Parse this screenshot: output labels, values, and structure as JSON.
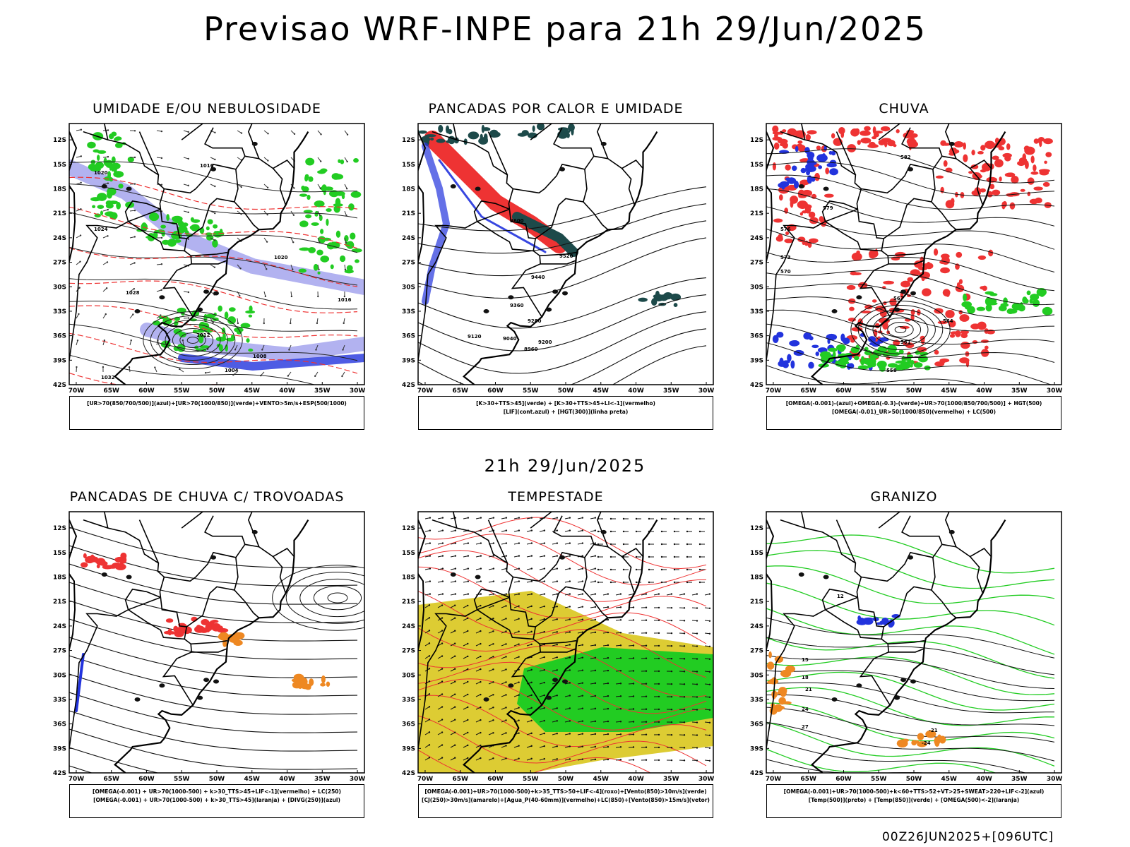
{
  "main_title": "Previsao WRF-INPE  para 21h 29/Jun/2025",
  "mid_date": "21h 29/Jun/2025",
  "footer_code": "00Z26JUN2025+[096UTC]",
  "axes": {
    "lat_labels": [
      "12S",
      "15S",
      "18S",
      "21S",
      "24S",
      "27S",
      "30S",
      "33S",
      "36S",
      "39S",
      "42S"
    ],
    "lon_labels": [
      "70W",
      "65W",
      "60W",
      "55W",
      "50W",
      "45W",
      "40W",
      "35W",
      "30W"
    ]
  },
  "panels": [
    {
      "title": "UMIDADE E/OU NEBULOSIDADE",
      "legend": [
        "[UR>70(850/700/500)](azul)+[UR>70(1000/850)](verde)+VENTO>5m/s+ESP(500/1000)"
      ],
      "contour_labels": [
        "1020",
        "1016",
        "1024",
        "1028",
        "1012",
        "1008",
        "1004",
        "1032"
      ]
    },
    {
      "title": "PANCADAS POR CALOR E UMIDADE",
      "legend": [
        "[K>30+TTS>45](verde) + [K>30+TTS>45+LI<-1](vermelho)",
        "[LIF](cont.azul) + [HGT(300)](linha preta)"
      ],
      "contour_labels": [
        "9600",
        "9520",
        "9440",
        "9360",
        "9280",
        "9200",
        "9120",
        "9040",
        "8960"
      ]
    },
    {
      "title": "CHUVA",
      "legend": [
        "[OMEGA(-0.001)-(azul)+OMEGA(-0.3)-(verde)+UR>70(1000/850/700/500)] + HGT(500)",
        "[OMEGA(-0.01)_UR>50(1000/850)(vermelho) + LC(500)"
      ],
      "contour_labels": [
        "582",
        "579",
        "576",
        "573",
        "570",
        "567",
        "564",
        "561",
        "558"
      ]
    },
    {
      "title": "PANCADAS DE CHUVA C/ TROVOADAS",
      "legend": [
        "[OMEGA(-0.001) + UR>70(1000-500) + k>30_TTS>45+LIF<-1](vermelho) + LC(250)",
        "[OMEGA(-0.001) + UR>70(1000-500) + k>30_TTS>45](laranja) + [DIVG(250)](azul)"
      ],
      "contour_labels": []
    },
    {
      "title": "TEMPESTADE",
      "legend": [
        "[OMEGA(-0.001)+UR>70(1000-500)+k>35_TTS>50+LIF<-4](roxo)+[Vento(850)>10m/s](verde)",
        "[CJ(250)>30m/s](amarelo)+[Agua_P(40-60mm)](vermelho)+LC(850)+[Vento(850)>15m/s](vetor)"
      ],
      "contour_labels": []
    },
    {
      "title": "GRANIZO",
      "legend": [
        "[OMEGA(-0.001)+UR>70(1000-500)+k<60+TTS>52+VT>25+SWEAT>220+LIF<-2](azul)",
        "[Temp(500)](preto) + [Temp(850)](verde) + [OMEGA(500)<-2](laranja)"
      ],
      "contour_labels": [
        "12",
        "15",
        "18",
        "21",
        "24",
        "27",
        "-21",
        "-24"
      ]
    }
  ],
  "colors": {
    "blue": "#2233dd",
    "green": "#22cc22",
    "red": "#ee3333",
    "lavender": "#aaaaee",
    "darkteal": "#1d4a4a",
    "yellow": "#ddcc33",
    "orange": "#ee8822"
  }
}
